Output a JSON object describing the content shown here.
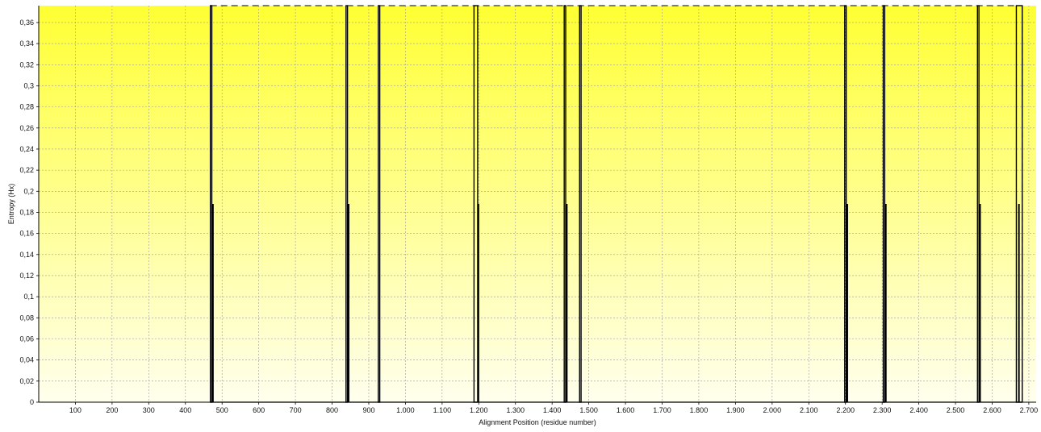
{
  "chart_data": {
    "type": "line",
    "title": "",
    "xlabel": "Alignment Position (residue number)",
    "ylabel": "Entropy (Hx)",
    "xlim": [
      0,
      2720
    ],
    "ylim": [
      0,
      0.376
    ],
    "x_ticks": [
      {
        "value": 100,
        "label": "100"
      },
      {
        "value": 200,
        "label": "200"
      },
      {
        "value": 300,
        "label": "300"
      },
      {
        "value": 400,
        "label": "400"
      },
      {
        "value": 500,
        "label": "500"
      },
      {
        "value": 600,
        "label": "600"
      },
      {
        "value": 700,
        "label": "700"
      },
      {
        "value": 800,
        "label": "800"
      },
      {
        "value": 900,
        "label": "900"
      },
      {
        "value": 1000,
        "label": "1.000"
      },
      {
        "value": 1100,
        "label": "1.100"
      },
      {
        "value": 1200,
        "label": "1.200"
      },
      {
        "value": 1300,
        "label": "1.300"
      },
      {
        "value": 1400,
        "label": "1.400"
      },
      {
        "value": 1500,
        "label": "1.500"
      },
      {
        "value": 1600,
        "label": "1.600"
      },
      {
        "value": 1700,
        "label": "1.700"
      },
      {
        "value": 1800,
        "label": "1.800"
      },
      {
        "value": 1900,
        "label": "1.900"
      },
      {
        "value": 2000,
        "label": "2.000"
      },
      {
        "value": 2100,
        "label": "2.100"
      },
      {
        "value": 2200,
        "label": "2.200"
      },
      {
        "value": 2300,
        "label": "2.300"
      },
      {
        "value": 2400,
        "label": "2.400"
      },
      {
        "value": 2500,
        "label": "2.500"
      },
      {
        "value": 2600,
        "label": "2.600"
      },
      {
        "value": 2700,
        "label": "2.700"
      }
    ],
    "y_ticks": [
      {
        "value": 0,
        "label": "0"
      },
      {
        "value": 0.02,
        "label": "0,02"
      },
      {
        "value": 0.04,
        "label": "0,04"
      },
      {
        "value": 0.06,
        "label": "0,06"
      },
      {
        "value": 0.08,
        "label": "0,08"
      },
      {
        "value": 0.1,
        "label": "0,1"
      },
      {
        "value": 0.12,
        "label": "0,12"
      },
      {
        "value": 0.14,
        "label": "0,14"
      },
      {
        "value": 0.16,
        "label": "0,16"
      },
      {
        "value": 0.18,
        "label": "0,18"
      },
      {
        "value": 0.2,
        "label": "0,2"
      },
      {
        "value": 0.22,
        "label": "0,22"
      },
      {
        "value": 0.24,
        "label": "0,24"
      },
      {
        "value": 0.26,
        "label": "0,26"
      },
      {
        "value": 0.28,
        "label": "0,28"
      },
      {
        "value": 0.3,
        "label": "0,3"
      },
      {
        "value": 0.32,
        "label": "0,32"
      },
      {
        "value": 0.34,
        "label": "0,34"
      },
      {
        "value": 0.36,
        "label": "0,36"
      }
    ],
    "grid": true,
    "background_gradient": {
      "top": "#ffff33",
      "bottom": "#ffffee"
    },
    "series": [
      {
        "color": "#000000",
        "points": [
          {
            "x": 470,
            "y": 0.376
          },
          {
            "x": 475,
            "y": 0.188
          },
          {
            "x": 840,
            "y": 0.376
          },
          {
            "x": 845,
            "y": 0.188
          },
          {
            "x": 928,
            "y": 0.376
          },
          {
            "x": 1189,
            "y": 0.376
          },
          {
            "x": 1194,
            "y": 0.376
          },
          {
            "x": 1199,
            "y": 0.188
          },
          {
            "x": 1435,
            "y": 0.376
          },
          {
            "x": 1440,
            "y": 0.188
          },
          {
            "x": 1477,
            "y": 0.376
          },
          {
            "x": 2200,
            "y": 0.376
          },
          {
            "x": 2205,
            "y": 0.188
          },
          {
            "x": 2305,
            "y": 0.376
          },
          {
            "x": 2310,
            "y": 0.188
          },
          {
            "x": 2562,
            "y": 0.376
          },
          {
            "x": 2567,
            "y": 0.188
          },
          {
            "x": 2668,
            "y": 0.376
          },
          {
            "x": 2673,
            "y": 0.188
          },
          {
            "x": 2680,
            "y": 0.376
          }
        ]
      }
    ],
    "entropy_spikes": [
      {
        "start": 468,
        "end": 472,
        "peak": 0.376
      },
      {
        "start": 838,
        "end": 842,
        "peak": 0.376
      },
      {
        "start": 926,
        "end": 930,
        "peak": 0.376
      },
      {
        "start": 1187,
        "end": 1197,
        "peak": 0.376
      },
      {
        "start": 1433,
        "end": 1437,
        "peak": 0.376
      },
      {
        "start": 1475,
        "end": 1479,
        "peak": 0.376
      },
      {
        "start": 2198,
        "end": 2202,
        "peak": 0.376
      },
      {
        "start": 2303,
        "end": 2307,
        "peak": 0.376
      },
      {
        "start": 2560,
        "end": 2564,
        "peak": 0.376
      },
      {
        "start": 2666,
        "end": 2682,
        "peak": 0.376
      }
    ]
  }
}
